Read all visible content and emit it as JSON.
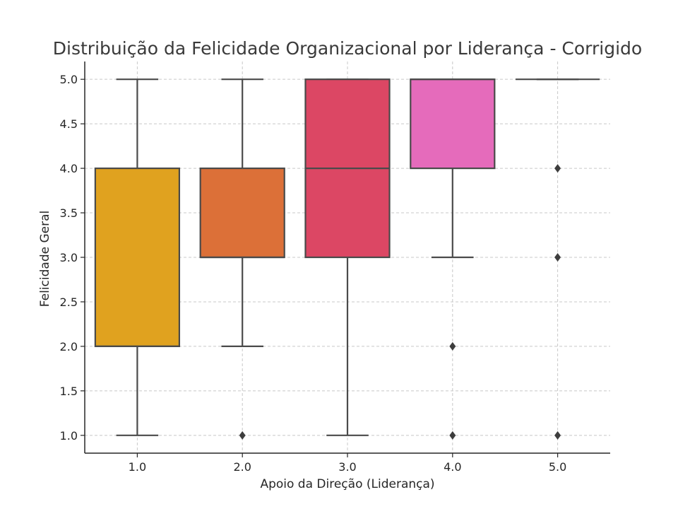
{
  "chart_data": {
    "type": "box",
    "title": "Distribuição da Felicidade Organizacional por Liderança - Corrigido",
    "xlabel": "Apoio da Direção (Liderança)",
    "ylabel": "Felicidade Geral",
    "categories": [
      "1.0",
      "2.0",
      "3.0",
      "4.0",
      "5.0"
    ],
    "yticks": [
      "1.0",
      "1.5",
      "2.0",
      "2.5",
      "3.0",
      "3.5",
      "4.0",
      "4.5",
      "5.0"
    ],
    "ylim": [
      0.8,
      5.2
    ],
    "grid": true,
    "boxes": [
      {
        "category": "1.0",
        "whisker_low": 1.0,
        "q1": 2.0,
        "median": 2.0,
        "q3": 4.0,
        "whisker_high": 5.0,
        "outliers": [],
        "color": "#E0A21F"
      },
      {
        "category": "2.0",
        "whisker_low": 2.0,
        "q1": 3.0,
        "median": 3.0,
        "q3": 4.0,
        "whisker_high": 5.0,
        "outliers": [
          1.0
        ],
        "color": "#DC7038"
      },
      {
        "category": "3.0",
        "whisker_low": 1.0,
        "q1": 3.0,
        "median": 4.0,
        "q3": 5.0,
        "whisker_high": 5.0,
        "outliers": [],
        "color": "#DC4764"
      },
      {
        "category": "4.0",
        "whisker_low": 3.0,
        "q1": 4.0,
        "median": 5.0,
        "q3": 5.0,
        "whisker_high": 5.0,
        "outliers": [
          2.0,
          1.0
        ],
        "color": "#E56BBB"
      },
      {
        "category": "5.0",
        "whisker_low": 5.0,
        "q1": 5.0,
        "median": 5.0,
        "q3": 5.0,
        "whisker_high": 5.0,
        "outliers": [
          4.0,
          3.0,
          1.0
        ],
        "color": "#9E5AB8"
      }
    ]
  }
}
